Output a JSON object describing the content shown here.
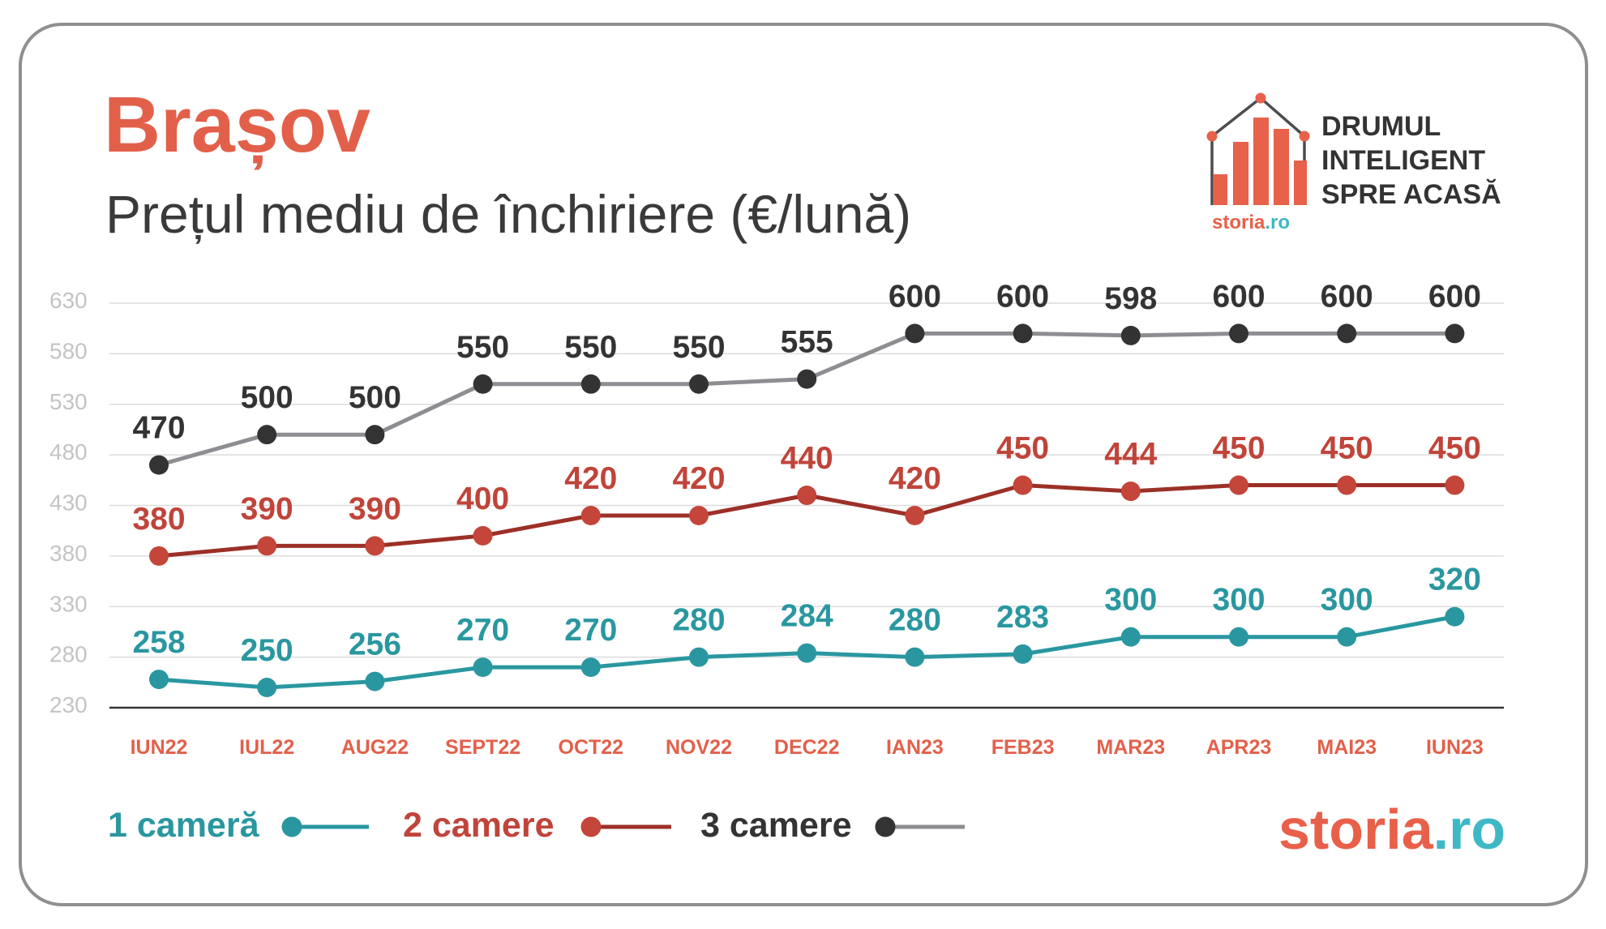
{
  "chart_data": {
    "type": "line",
    "title": "Brașov",
    "subtitle": "Prețul mediu de închiriere (€/lună)",
    "categories": [
      "IUN22",
      "IUL22",
      "AUG22",
      "SEPT22",
      "OCT22",
      "NOV22",
      "DEC22",
      "IAN23",
      "FEB23",
      "MAR23",
      "APR23",
      "MAI23",
      "IUN23"
    ],
    "y_ticks": [
      630,
      580,
      530,
      480,
      430,
      380,
      330,
      280,
      230
    ],
    "ylim": [
      230,
      630
    ],
    "grid": true,
    "legend_position": "bottom-left",
    "series": [
      {
        "name": "1 cameră",
        "values": [
          258,
          250,
          256,
          270,
          270,
          280,
          284,
          280,
          283,
          300,
          300,
          300,
          320
        ],
        "line_color": "#2a97a0",
        "marker_color": "#2a97a0",
        "label_color": "#2a97a0"
      },
      {
        "name": "2 camere",
        "values": [
          380,
          390,
          390,
          400,
          420,
          420,
          440,
          420,
          450,
          444,
          450,
          450,
          450
        ],
        "line_color": "#9c3027",
        "marker_color": "#c4453a",
        "label_color": "#c0443a"
      },
      {
        "name": "3 camere",
        "values": [
          470,
          500,
          500,
          550,
          550,
          550,
          555,
          600,
          600,
          598,
          600,
          600,
          600
        ],
        "line_color": "#8e8d92",
        "marker_color": "#333333",
        "label_color": "#333333"
      }
    ]
  },
  "logo": {
    "icon": "house-chart-icon",
    "tagline_lines": [
      "DRUMUL",
      "INTELIGENT",
      "SPRE ACASĂ"
    ],
    "brand_name": "storia",
    "brand_tld": ".ro"
  },
  "footer_brand": {
    "brand_name": "storia",
    "brand_tld": ".ro"
  },
  "colors": {
    "accent": "#e2604a",
    "brand_tld": "#3fb8c6",
    "border": "#8f8f8f",
    "grid": "#dcdcdc",
    "axis": "#333333",
    "tick_label": "#c4c4c4"
  }
}
